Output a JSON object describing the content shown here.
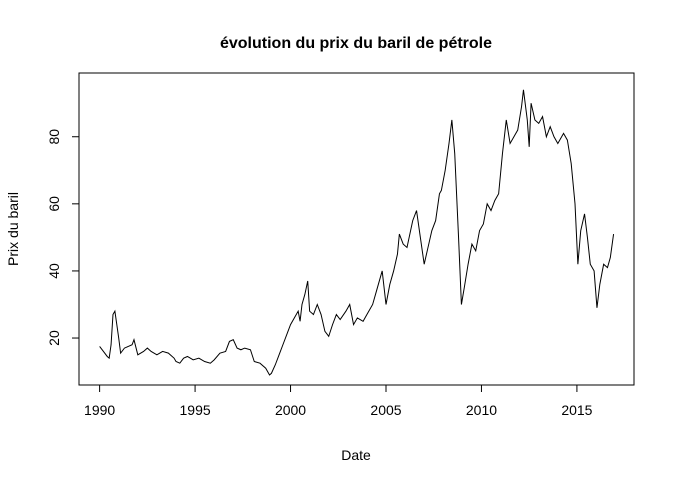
{
  "chart_data": {
    "type": "line",
    "title": "évolution du prix du baril de pétrole",
    "xlabel": "Date",
    "ylabel": "Prix du baril",
    "x": [
      1990.0,
      1990.2,
      1990.4,
      1990.5,
      1990.6,
      1990.7,
      1990.8,
      1990.9,
      1991.0,
      1991.1,
      1991.3,
      1991.5,
      1991.7,
      1991.8,
      1992.0,
      1992.3,
      1992.5,
      1992.7,
      1993.0,
      1993.3,
      1993.6,
      1993.9,
      1994.0,
      1994.2,
      1994.4,
      1994.6,
      1994.9,
      1995.2,
      1995.5,
      1995.8,
      1996.0,
      1996.3,
      1996.6,
      1996.8,
      1997.0,
      1997.2,
      1997.4,
      1997.6,
      1997.9,
      1998.1,
      1998.4,
      1998.7,
      1998.9,
      1999.0,
      1999.2,
      1999.4,
      1999.6,
      1999.8,
      2000.0,
      2000.2,
      2000.4,
      2000.5,
      2000.6,
      2000.75,
      2000.9,
      2001.0,
      2001.2,
      2001.4,
      2001.6,
      2001.8,
      2002.0,
      2002.2,
      2002.4,
      2002.6,
      2002.9,
      2003.1,
      2003.3,
      2003.5,
      2003.8,
      2004.0,
      2004.3,
      2004.5,
      2004.8,
      2004.9,
      2005.0,
      2005.2,
      2005.4,
      2005.6,
      2005.7,
      2005.9,
      2006.1,
      2006.4,
      2006.6,
      2006.8,
      2007.0,
      2007.2,
      2007.4,
      2007.6,
      2007.8,
      2007.9,
      2008.1,
      2008.3,
      2008.45,
      2008.6,
      2008.8,
      2008.95,
      2009.1,
      2009.3,
      2009.5,
      2009.7,
      2009.9,
      2010.1,
      2010.3,
      2010.5,
      2010.7,
      2010.9,
      2011.1,
      2011.3,
      2011.5,
      2011.7,
      2011.9,
      2012.1,
      2012.2,
      2012.4,
      2012.5,
      2012.6,
      2012.8,
      2013.0,
      2013.2,
      2013.4,
      2013.6,
      2013.8,
      2014.0,
      2014.3,
      2014.5,
      2014.7,
      2014.9,
      2015.05,
      2015.2,
      2015.4,
      2015.55,
      2015.7,
      2015.9,
      2016.05,
      2016.2,
      2016.4,
      2016.6,
      2016.75,
      2016.92
    ],
    "values": [
      17.5,
      16,
      14.5,
      14,
      18,
      27,
      28,
      24,
      20,
      15.5,
      17,
      17.5,
      18,
      19.5,
      15,
      16,
      17,
      16,
      15,
      16,
      15.5,
      14,
      13,
      12.5,
      14,
      14.5,
      13.5,
      14,
      13,
      12.5,
      13.5,
      15.5,
      16,
      19,
      19.5,
      17,
      16.5,
      17,
      16.5,
      13,
      12.5,
      11,
      9,
      9.5,
      12,
      15,
      18,
      21,
      24,
      26,
      28,
      25,
      30,
      33,
      37,
      28,
      27,
      30,
      27,
      22,
      20.5,
      24,
      27,
      25.5,
      28,
      30,
      24,
      26,
      25,
      27,
      30,
      34,
      40,
      35,
      30,
      36,
      40,
      45,
      51,
      48,
      47,
      55,
      58,
      50,
      42,
      47,
      52,
      55,
      63,
      64,
      70,
      78,
      85,
      75,
      50,
      30,
      35,
      42,
      48,
      46,
      52,
      54,
      60,
      58,
      61,
      63,
      75,
      85,
      78,
      80,
      82,
      89,
      94,
      85,
      77,
      90,
      85,
      84,
      86,
      80,
      83,
      80,
      78,
      81,
      79,
      72,
      60,
      42,
      52,
      57,
      50,
      42,
      40,
      29,
      36,
      42,
      41,
      44,
      51
    ],
    "color": "#000000",
    "xlim": [
      1988.92,
      2017.99
    ],
    "xticks": [
      1990,
      1995,
      2000,
      2005,
      2010,
      2015
    ],
    "ylim": [
      6,
      99
    ],
    "yticks": [
      20,
      40,
      60,
      80
    ]
  }
}
